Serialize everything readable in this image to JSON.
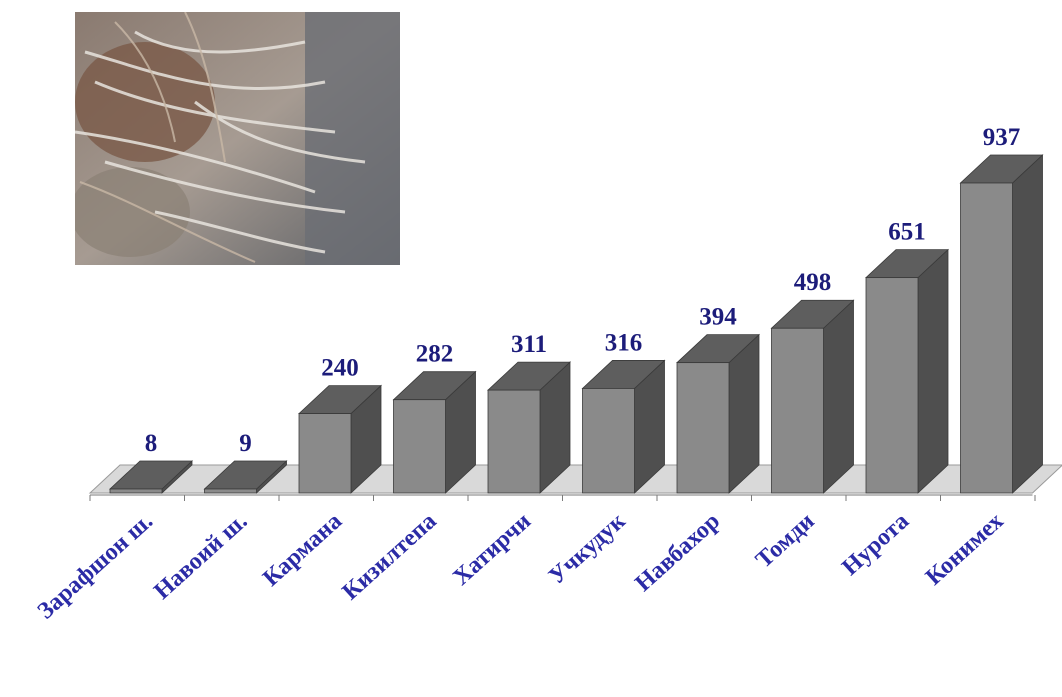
{
  "photo": {
    "description_icon": "fur-photo"
  },
  "colors": {
    "bar_front": "#8a8a8a",
    "bar_side": "#4f4f4f",
    "bar_top": "#5e5e5e",
    "floor": "#d9d9d9",
    "value_label": "#1c1c7a",
    "category_label": "#2b2ba6"
  },
  "chart_data": {
    "type": "bar",
    "style": "3d-column",
    "categories": [
      "Зарафшон ш.",
      "Навоий ш.",
      "Кармана",
      "Кизилтепа",
      "Хатирчи",
      "Учкудук",
      "Навбахор",
      "Томди",
      "Нурота",
      "Конимех"
    ],
    "values": [
      8,
      9,
      240,
      282,
      311,
      316,
      394,
      498,
      651,
      937
    ],
    "value_labels": [
      "8",
      "9",
      "240",
      "282",
      "311",
      "316",
      "394",
      "498",
      "651",
      "937"
    ],
    "ylim": [
      0,
      937
    ],
    "grid": false,
    "legend": "none"
  }
}
